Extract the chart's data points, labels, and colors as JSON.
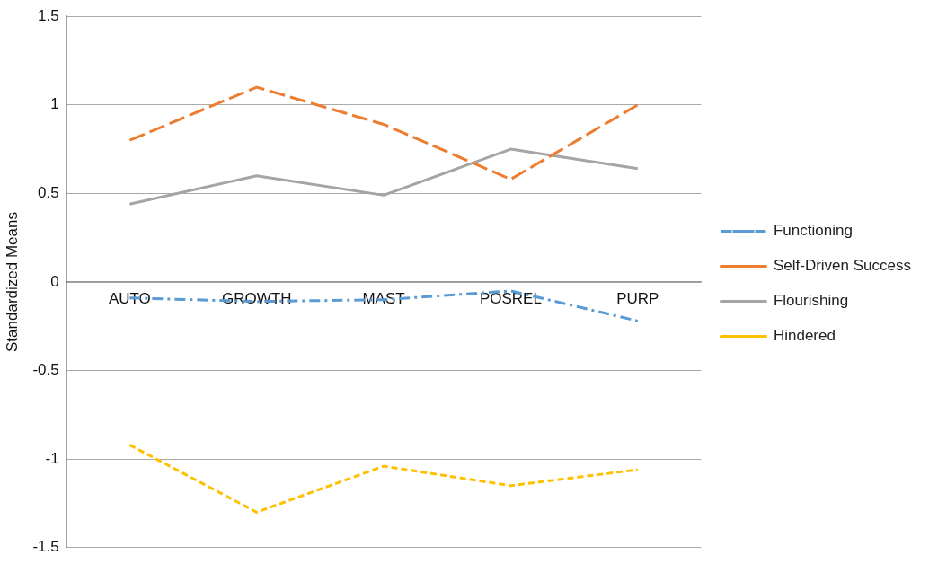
{
  "chart_data": {
    "type": "line",
    "ylabel": "Standardized Means",
    "categories": [
      "AUTO",
      "GROWTH",
      "MAST",
      "POSREL",
      "PURP"
    ],
    "ylim": [
      -1.5,
      1.5
    ],
    "yticks": [
      -1.5,
      -1,
      -0.5,
      0,
      0.5,
      1,
      1.5
    ],
    "grid": "y",
    "legend": "right",
    "marker": "none",
    "series": [
      {
        "name": "Functioning",
        "color": "#5b9bd5",
        "line_style": "dashed",
        "values": [
          -0.09,
          -0.11,
          -0.1,
          -0.05,
          -0.22
        ]
      },
      {
        "name": "Self-Driven Success",
        "color": "#ed7d31",
        "line_style": "dashed",
        "values": [
          0.8,
          1.1,
          0.89,
          0.58,
          1.0
        ]
      },
      {
        "name": "Flourishing",
        "color": "#a5a5a5",
        "line_style": "solid",
        "values": [
          0.44,
          0.6,
          0.49,
          0.75,
          0.64
        ]
      },
      {
        "name": "Hindered",
        "color": "#ffc000",
        "line_style": "dotted",
        "values": [
          -0.92,
          -1.3,
          -1.04,
          -1.15,
          -1.06
        ]
      }
    ]
  }
}
